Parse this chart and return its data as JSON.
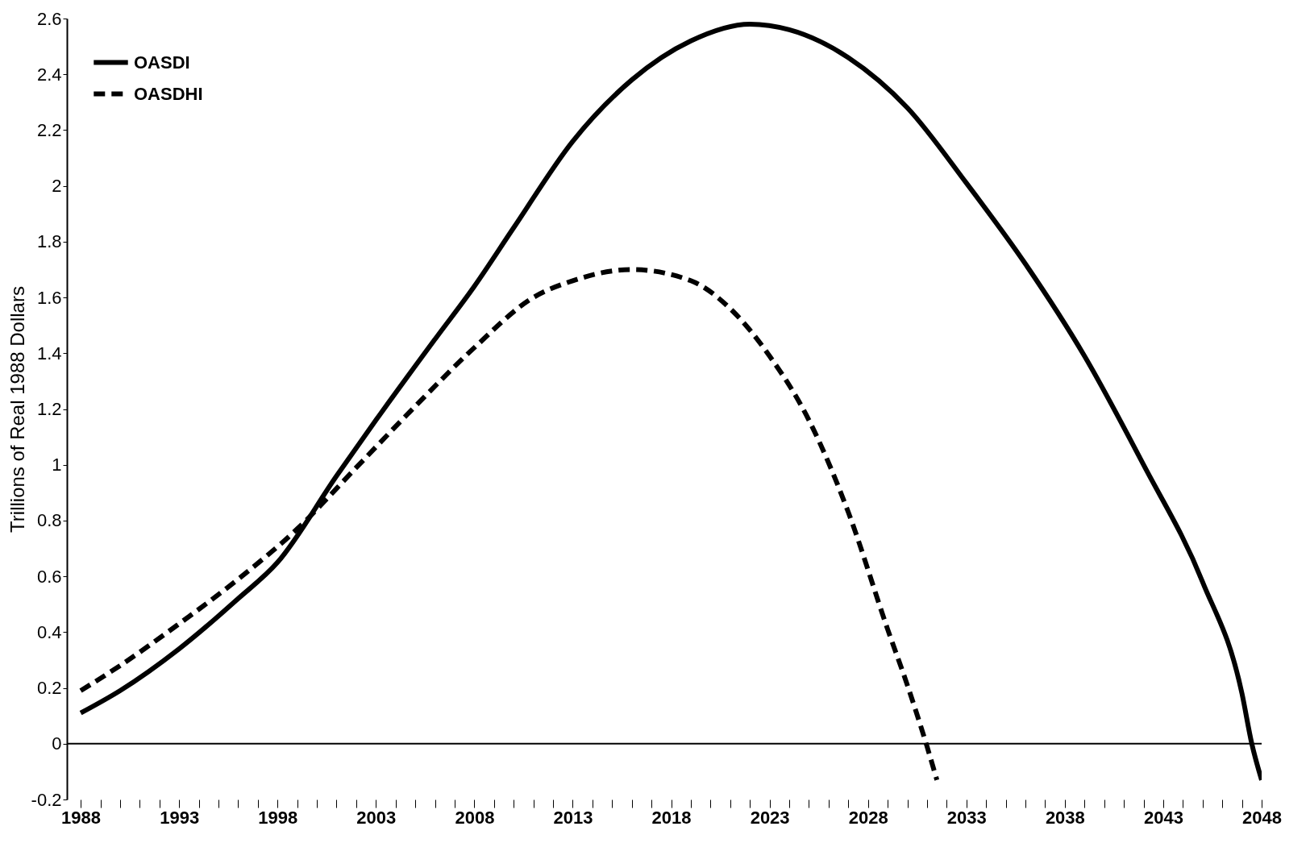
{
  "chart_data": {
    "type": "line",
    "ylabel": "Trillions of Real 1988 Dollars",
    "legend": "top left",
    "grid": false,
    "ylim": [
      -0.2,
      2.6
    ],
    "yticks": [
      -0.2,
      0,
      0.2,
      0.4,
      0.6,
      0.8,
      1,
      1.2,
      1.4,
      1.6,
      1.8,
      2,
      2.2,
      2.4,
      2.6
    ],
    "xlim": [
      1987.3,
      2048
    ],
    "xticks": [
      1988,
      {
        "value": 1989,
        "label": null
      },
      {
        "value": 1990,
        "label": null
      },
      {
        "value": 1991,
        "label": null
      },
      {
        "value": 1992,
        "label": null
      },
      1993,
      {
        "value": 1994,
        "label": null
      },
      {
        "value": 1995,
        "label": null
      },
      {
        "value": 1996,
        "label": null
      },
      {
        "value": 1997,
        "label": null
      },
      1998,
      {
        "value": 1999,
        "label": null
      },
      {
        "value": 2000,
        "label": null
      },
      {
        "value": 2001,
        "label": null
      },
      {
        "value": 2002,
        "label": null
      },
      2003,
      {
        "value": 2004,
        "label": null
      },
      {
        "value": 2005,
        "label": null
      },
      {
        "value": 2006,
        "label": null
      },
      {
        "value": 2007,
        "label": null
      },
      2008,
      {
        "value": 2009,
        "label": null
      },
      {
        "value": 2010,
        "label": null
      },
      {
        "value": 2011,
        "label": null
      },
      {
        "value": 2012,
        "label": null
      },
      2013,
      {
        "value": 2014,
        "label": null
      },
      {
        "value": 2015,
        "label": null
      },
      {
        "value": 2016,
        "label": null
      },
      {
        "value": 2017,
        "label": null
      },
      2018,
      {
        "value": 2019,
        "label": null
      },
      {
        "value": 2020,
        "label": null
      },
      {
        "value": 2021,
        "label": null
      },
      {
        "value": 2022,
        "label": null
      },
      2023,
      {
        "value": 2024,
        "label": null
      },
      {
        "value": 2025,
        "label": null
      },
      {
        "value": 2026,
        "label": null
      },
      {
        "value": 2027,
        "label": null
      },
      2028,
      {
        "value": 2029,
        "label": null
      },
      {
        "value": 2030,
        "label": null
      },
      {
        "value": 2031,
        "label": null
      },
      {
        "value": 2032,
        "label": null
      },
      2033,
      {
        "value": 2034,
        "label": null
      },
      {
        "value": 2035,
        "label": null
      },
      {
        "value": 2036,
        "label": null
      },
      {
        "value": 2037,
        "label": null
      },
      2038,
      {
        "value": 2039,
        "label": null
      },
      {
        "value": 2040,
        "label": null
      },
      {
        "value": 2041,
        "label": null
      },
      {
        "value": 2042,
        "label": null
      },
      2043,
      {
        "value": 2044,
        "label": null
      },
      {
        "value": 2045,
        "label": null
      },
      {
        "value": 2046,
        "label": null
      },
      {
        "value": 2047,
        "label": null
      },
      2048
    ],
    "ref_lines": [
      {
        "axis": "y",
        "value": 0,
        "color": "#000000"
      }
    ],
    "series": [
      {
        "name": "OASDI",
        "color": "#000000",
        "line_style": "solid",
        "x": [
          1988,
          1990,
          1993,
          1996,
          1998,
          2001,
          2003,
          2006,
          2008,
          2010,
          2013,
          2016,
          2019,
          2022,
          2024,
          2027,
          2030,
          2033,
          2036,
          2039,
          2042,
          2045,
          2047,
          2047.5,
          2048
        ],
        "values": [
          0.11,
          0.19,
          0.34,
          0.52,
          0.65,
          0.96,
          1.16,
          1.45,
          1.64,
          1.85,
          2.16,
          2.38,
          2.52,
          2.58,
          2.56,
          2.46,
          2.28,
          2.01,
          1.72,
          1.39,
          1.0,
          0.58,
          0.18,
          0,
          -0.13
        ]
      },
      {
        "name": "OASDHI",
        "color": "#000000",
        "line_style": "dashed",
        "x": [
          1988,
          1990,
          1993,
          1996,
          1999,
          2002,
          2005,
          2008,
          2011,
          2013,
          2016,
          2019,
          2021,
          2023,
          2025,
          2027,
          2029,
          2030,
          2031,
          2031.5
        ],
        "values": [
          0.19,
          0.28,
          0.43,
          0.59,
          0.77,
          0.99,
          1.21,
          1.42,
          1.6,
          1.66,
          1.7,
          1.66,
          1.56,
          1.39,
          1.16,
          0.83,
          0.41,
          0.21,
          -0.01,
          -0.13
        ]
      }
    ]
  }
}
